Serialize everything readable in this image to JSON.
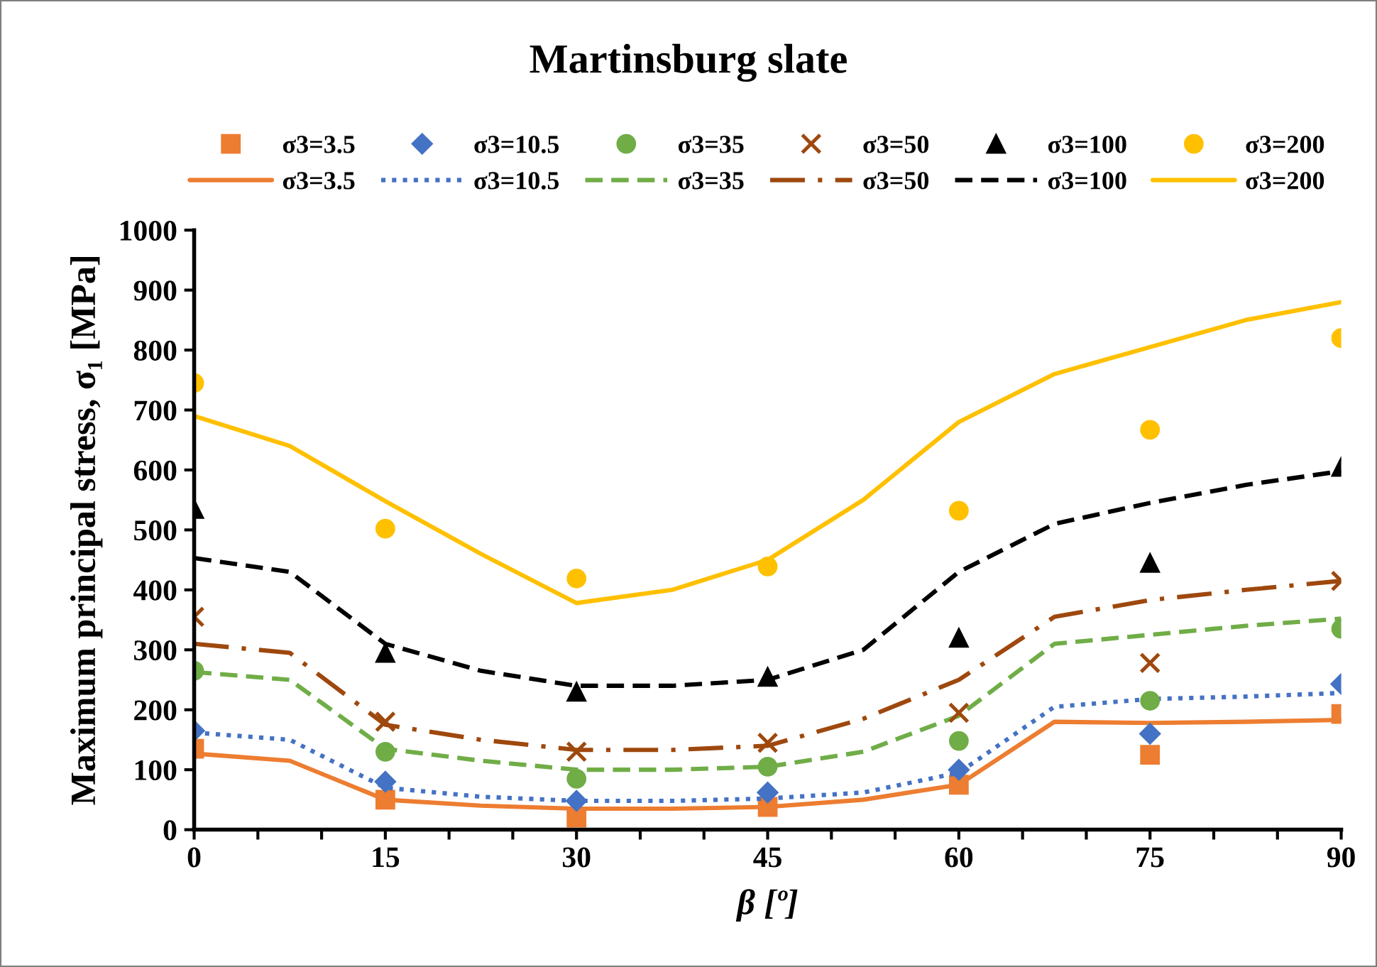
{
  "chart_data": {
    "type": "scatter",
    "title": "Martinsburg slate",
    "xlabel": "β [º]",
    "ylabel": "Maximum principal stress, σ₁ [MPa]",
    "xlim": [
      0,
      90
    ],
    "xticks": [
      0,
      {
        "value": 5,
        "label": null
      },
      {
        "value": 10,
        "label": null
      },
      15,
      {
        "value": 20,
        "label": null
      },
      {
        "value": 25,
        "label": null
      },
      30,
      {
        "value": 35,
        "label": null
      },
      {
        "value": 40,
        "label": null
      },
      45,
      {
        "value": 50,
        "label": null
      },
      {
        "value": 55,
        "label": null
      },
      60,
      {
        "value": 65,
        "label": null
      },
      {
        "value": 70,
        "label": null
      },
      75,
      {
        "value": 80,
        "label": null
      },
      {
        "value": 85,
        "label": null
      },
      90
    ],
    "ylim": [
      0,
      1000
    ],
    "yticks": [
      0,
      100,
      200,
      300,
      400,
      500,
      600,
      700,
      800,
      900,
      1000
    ],
    "grid": false,
    "legend": "top",
    "series": [
      {
        "name": "σ3=3.5",
        "marker": "square",
        "color": "#ed7d31",
        "x": [
          0,
          15,
          30,
          45,
          60,
          75,
          90
        ],
        "values": [
          135,
          50,
          20,
          38,
          75,
          125,
          193
        ]
      },
      {
        "name": "σ3=3.5",
        "type": "line",
        "line_style": "solid",
        "color": "#ed7d31",
        "x": [
          0,
          7.5,
          15,
          22.5,
          30,
          37.5,
          45,
          52.5,
          60,
          67.5,
          75,
          82.5,
          90
        ],
        "values": [
          127,
          115,
          50,
          40,
          35,
          35,
          38,
          50,
          75,
          180,
          178,
          180,
          183
        ]
      },
      {
        "name": "σ3=10.5",
        "marker": "diamond",
        "color": "#4472c4",
        "x": [
          0,
          15,
          30,
          45,
          60,
          75,
          90
        ],
        "values": [
          165,
          80,
          48,
          62,
          100,
          160,
          243
        ]
      },
      {
        "name": "σ3=10.5",
        "type": "line",
        "line_style": "dotted",
        "color": "#4472c4",
        "x": [
          0,
          7.5,
          15,
          22.5,
          30,
          37.5,
          45,
          52.5,
          60,
          67.5,
          75,
          82.5,
          90
        ],
        "values": [
          162,
          150,
          70,
          55,
          48,
          48,
          52,
          62,
          95,
          205,
          218,
          222,
          228
        ]
      },
      {
        "name": "σ3=35",
        "marker": "circle",
        "color": "#70ad47",
        "x": [
          0,
          15,
          30,
          45,
          60,
          75,
          90
        ],
        "values": [
          265,
          130,
          85,
          105,
          148,
          215,
          335
        ]
      },
      {
        "name": "σ3=35",
        "type": "line",
        "line_style": "dashed",
        "color": "#70ad47",
        "x": [
          0,
          7.5,
          15,
          22.5,
          30,
          37.5,
          45,
          52.5,
          60,
          67.5,
          75,
          82.5,
          90
        ],
        "values": [
          263,
          250,
          135,
          115,
          100,
          100,
          105,
          130,
          190,
          310,
          325,
          340,
          352
        ]
      },
      {
        "name": "σ3=50",
        "marker": "cross",
        "color": "#9e480e",
        "x": [
          0,
          15,
          30,
          45,
          60,
          75,
          90
        ],
        "values": [
          355,
          180,
          130,
          145,
          195,
          278,
          415
        ]
      },
      {
        "name": "σ3=50",
        "type": "line",
        "line_style": "dashdot",
        "color": "#9e480e",
        "x": [
          0,
          7.5,
          15,
          22.5,
          30,
          37.5,
          45,
          52.5,
          60,
          67.5,
          75,
          82.5,
          90
        ],
        "values": [
          310,
          295,
          175,
          150,
          133,
          133,
          140,
          185,
          250,
          355,
          383,
          400,
          415
        ]
      },
      {
        "name": "σ3=100",
        "marker": "triangle",
        "color": "#000000",
        "x": [
          0,
          15,
          30,
          45,
          60,
          75,
          90
        ],
        "values": [
          535,
          295,
          230,
          255,
          320,
          445,
          605
        ]
      },
      {
        "name": "σ3=100",
        "type": "line",
        "line_style": "dashed",
        "color": "#000000",
        "x": [
          0,
          7.5,
          15,
          22.5,
          30,
          37.5,
          45,
          52.5,
          60,
          67.5,
          75,
          82.5,
          90
        ],
        "values": [
          453,
          430,
          310,
          265,
          240,
          240,
          250,
          300,
          430,
          510,
          545,
          575,
          598
        ]
      },
      {
        "name": "σ3=200",
        "marker": "circle",
        "color": "#ffc000",
        "x": [
          0,
          15,
          30,
          45,
          60,
          75,
          90
        ],
        "values": [
          745,
          502,
          419,
          439,
          532,
          667,
          820
        ]
      },
      {
        "name": "σ3=200",
        "type": "line",
        "line_style": "solid",
        "color": "#ffc000",
        "x": [
          0,
          7.5,
          15,
          22.5,
          30,
          37.5,
          45,
          52.5,
          60,
          67.5,
          75,
          82.5,
          90
        ],
        "values": [
          690,
          640,
          548,
          460,
          378,
          400,
          450,
          550,
          680,
          760,
          805,
          850,
          880
        ]
      }
    ]
  }
}
